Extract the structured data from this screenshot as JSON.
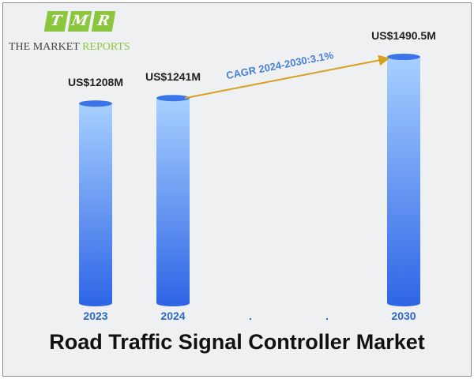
{
  "logo": {
    "letters": [
      "T",
      "M",
      "R"
    ],
    "line_part1": "THE MARKET ",
    "line_part2": "REPORTS"
  },
  "colors": {
    "bar_top": "#a8d0ff",
    "bar_bottom": "#2f66e6",
    "cagr_arrow": "#d9a020",
    "logo_green": "#8cc63f",
    "axis_label": "#2f67c8"
  },
  "chart_data": {
    "type": "bar",
    "title": "Road Traffic Signal Controller Market",
    "categories": [
      "2023",
      "2024",
      ".",
      ".",
      "2030"
    ],
    "values": [
      1208,
      1241,
      null,
      null,
      1490.5
    ],
    "value_labels": [
      "US$1208M",
      "US$1241M",
      "",
      "",
      "US$1490.5M"
    ],
    "annotation": "CAGR 2024-2030:3.1%",
    "xlabel": "",
    "ylabel": "",
    "grid": false,
    "legend": "none"
  }
}
